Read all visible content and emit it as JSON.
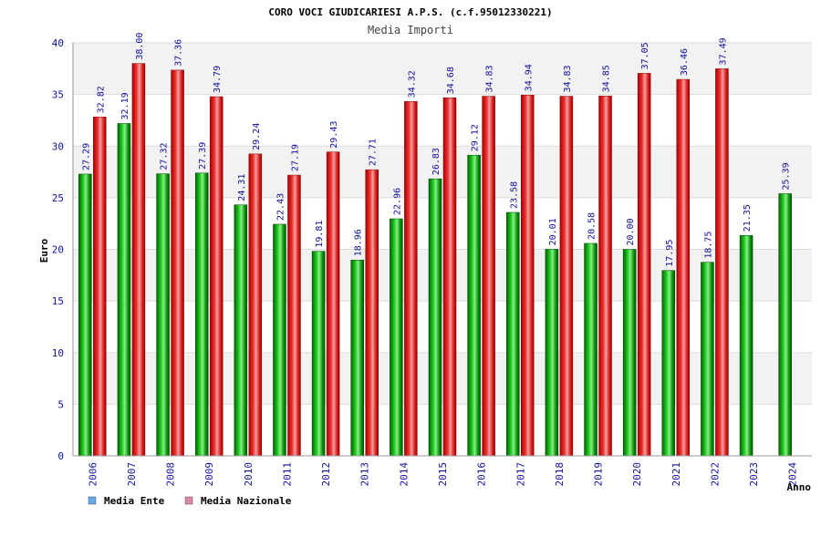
{
  "chart_data": {
    "type": "bar",
    "title": "CORO VOCI GIUDICARIESI A.P.S. (c.f.95012330221)",
    "subtitle": "Media Importi",
    "ylabel": "Euro",
    "xlabel": "Anno",
    "ylim": [
      0,
      40
    ],
    "yticks": [
      "0",
      "5",
      "10",
      "15",
      "20",
      "25",
      "30",
      "35",
      "40"
    ],
    "grid": true,
    "legend_position": "bottom-left",
    "categories": [
      "2006",
      "2007",
      "2008",
      "2009",
      "2010",
      "2011",
      "2012",
      "2013",
      "2014",
      "2015",
      "2016",
      "2017",
      "2018",
      "2019",
      "2020",
      "2021",
      "2022",
      "2023",
      "2024"
    ],
    "series": [
      {
        "name": "Media Ente",
        "color": "#22aa22",
        "legend_color": "#66aaee",
        "values": [
          27.29,
          32.19,
          27.32,
          27.39,
          24.31,
          22.43,
          19.81,
          18.96,
          22.96,
          26.83,
          29.12,
          23.58,
          20.01,
          20.58,
          20.0,
          17.95,
          18.75,
          21.35,
          25.39
        ],
        "labels": [
          "27.29",
          "32.19",
          "27.32",
          "27.39",
          "24.31",
          "22.43",
          "19.81",
          "18.96",
          "22.96",
          "26.83",
          "29.12",
          "23.58",
          "20.01",
          "20.58",
          "20.00",
          "17.95",
          "18.75",
          "21.35",
          "25.39"
        ]
      },
      {
        "name": "Media Nazionale",
        "color": "#dd2222",
        "legend_color": "#dd88aa",
        "values": [
          32.82,
          38.0,
          37.36,
          34.79,
          29.24,
          27.19,
          29.43,
          27.71,
          34.32,
          34.68,
          34.83,
          34.94,
          34.83,
          34.85,
          37.05,
          36.46,
          37.49,
          null,
          null
        ],
        "labels": [
          "32.82",
          "38.00",
          "37.36",
          "34.79",
          "29.24",
          "27.19",
          "29.43",
          "27.71",
          "34.32",
          "34.68",
          "34.83",
          "34.94",
          "34.83",
          "34.85",
          "37.05",
          "36.46",
          "37.49",
          null,
          null
        ]
      }
    ]
  }
}
